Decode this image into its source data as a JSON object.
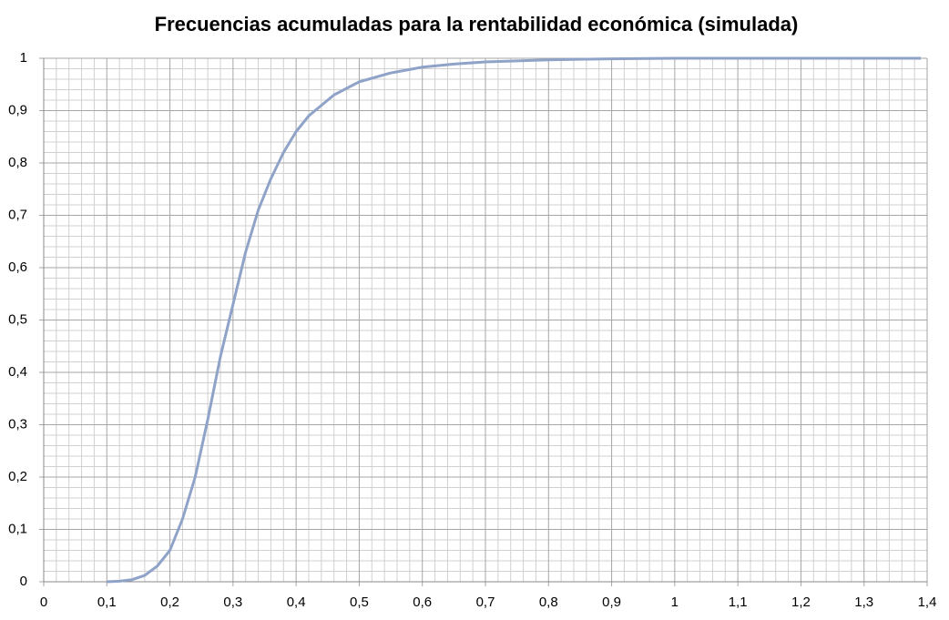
{
  "chart_data": {
    "type": "line",
    "title": "Frecuencias acumuladas para la rentabilidad económica (simulada)",
    "x": [
      0.1,
      0.12,
      0.14,
      0.16,
      0.18,
      0.2,
      0.22,
      0.24,
      0.26,
      0.28,
      0.3,
      0.32,
      0.34,
      0.36,
      0.38,
      0.4,
      0.42,
      0.44,
      0.46,
      0.5,
      0.55,
      0.6,
      0.65,
      0.7,
      0.8,
      0.9,
      1.0,
      1.39
    ],
    "series": [
      {
        "color": "#8fa3c8",
        "values": [
          0,
          0.001,
          0.004,
          0.012,
          0.03,
          0.06,
          0.12,
          0.2,
          0.31,
          0.43,
          0.53,
          0.63,
          0.71,
          0.77,
          0.82,
          0.86,
          0.89,
          0.91,
          0.93,
          0.955,
          0.972,
          0.983,
          0.989,
          0.993,
          0.997,
          0.999,
          1,
          1
        ]
      }
    ],
    "xlim": [
      0,
      1.4
    ],
    "xticks": [
      0,
      {
        "value": 0.1,
        "label": "0,1"
      },
      {
        "value": 0.2,
        "label": "0,2"
      },
      {
        "value": 0.3,
        "label": "0,3"
      },
      {
        "value": 0.4,
        "label": "0,4"
      },
      {
        "value": 0.5,
        "label": "0,5"
      },
      {
        "value": 0.6,
        "label": "0,6"
      },
      {
        "value": 0.7,
        "label": "0,7"
      },
      {
        "value": 0.8,
        "label": "0,8"
      },
      {
        "value": 0.9,
        "label": "0,9"
      },
      1,
      {
        "value": 1.1,
        "label": "1,1"
      },
      {
        "value": 1.2,
        "label": "1,2"
      },
      {
        "value": 1.3,
        "label": "1,3"
      },
      {
        "value": 1.4,
        "label": "1,4"
      }
    ],
    "ylim": [
      0,
      1
    ],
    "yticks": [
      0,
      {
        "value": 0.1,
        "label": "0,1"
      },
      {
        "value": 0.2,
        "label": "0,2"
      },
      {
        "value": 0.3,
        "label": "0,3"
      },
      {
        "value": 0.4,
        "label": "0,4"
      },
      {
        "value": 0.5,
        "label": "0,5"
      },
      {
        "value": 0.6,
        "label": "0,6"
      },
      {
        "value": 0.7,
        "label": "0,7"
      },
      {
        "value": 0.8,
        "label": "0,8"
      },
      {
        "value": 0.9,
        "label": "0,9"
      },
      1
    ],
    "grid": true,
    "minor_grid": true
  }
}
